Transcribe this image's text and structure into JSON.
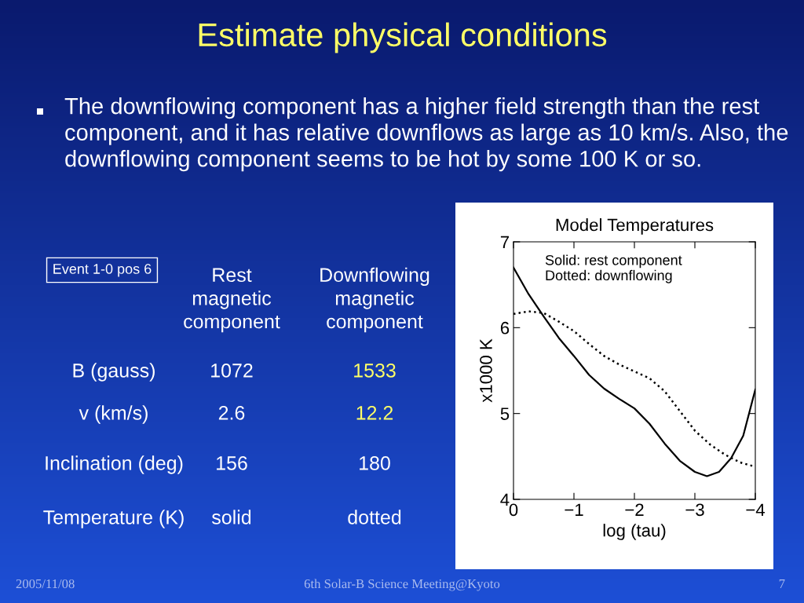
{
  "chart_data": [
    {
      "type": "other",
      "title": "Estimate physical conditions",
      "annotations": [
        "The downflowing component has a higher field strength than the rest component, and it has relative downflows as large as 10 km/s. Also, the downflowing component seems to be hot by some 100 K or so.",
        "Event 1-0 pos 6",
        "Rest\nmagnetic\ncomponent",
        "Downflowing\nmagnetic\ncomponent",
        "B (gauss)",
        "1072",
        "1533",
        "v (km/s)",
        "2.6",
        "12.2",
        "Inclination (deg)",
        "156",
        "180",
        "Temperature (K)",
        "solid",
        "dotted",
        "2005/11/08",
        "6th Solar-B Science Meeting@Kyoto",
        "7"
      ]
    },
    {
      "type": "line",
      "title": "Model Temperatures",
      "xlabel": "log (tau)",
      "ylabel": "x1000 K",
      "xlim": [
        0,
        -4
      ],
      "ylim": [
        4,
        7
      ],
      "xticks": [
        0,
        {
          "value": -1,
          "label": "−1"
        },
        {
          "value": -2,
          "label": "−2"
        },
        {
          "value": -3,
          "label": "−3"
        },
        {
          "value": -4,
          "label": "−4"
        }
      ],
      "yticks": [
        4,
        5,
        6,
        7
      ],
      "annotations": [
        "Solid: rest component\nDotted: downflowing"
      ],
      "x": [
        0,
        -0.25,
        -0.5,
        -0.75,
        -1,
        -1.25,
        -1.5,
        -1.75,
        -2,
        -2.25,
        -2.5,
        -2.75,
        -3,
        -3.2,
        -3.4,
        -3.6,
        -3.8,
        -4
      ],
      "series": [
        {
          "color": "#000000",
          "line_style": "solid",
          "values": [
            6.7,
            6.39,
            6.13,
            5.88,
            5.67,
            5.45,
            5.29,
            5.17,
            5.06,
            4.88,
            4.65,
            4.45,
            4.32,
            4.27,
            4.32,
            4.48,
            4.74,
            5.28
          ]
        },
        {
          "color": "#000000",
          "line_style": "dotted",
          "x": [
            0,
            -0.25,
            -0.5,
            -0.75,
            -1,
            -1.25,
            -1.5,
            -1.75,
            -2,
            -2.25,
            -2.5,
            -2.75,
            -3,
            -3.25,
            -3.5,
            -3.75,
            -4
          ],
          "values": [
            6.16,
            6.19,
            6.17,
            6.07,
            5.96,
            5.81,
            5.67,
            5.57,
            5.49,
            5.41,
            5.26,
            5.03,
            4.8,
            4.64,
            4.52,
            4.43,
            4.38
          ]
        }
      ]
    }
  ]
}
